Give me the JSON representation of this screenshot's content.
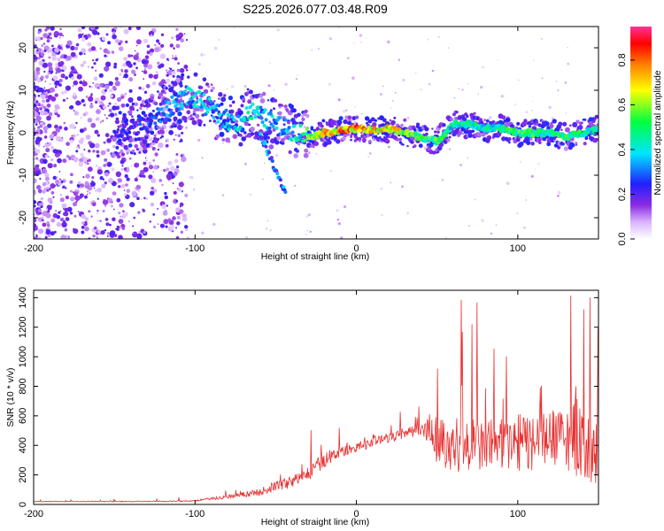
{
  "title": "S225.2026.077.03.48.R09",
  "chart_data": [
    {
      "type": "heatmap",
      "xlabel": "Height of straight line (km)",
      "ylabel": "Frequency (Hz)",
      "xlim": [
        -200,
        150
      ],
      "ylim": [
        -25,
        25
      ],
      "xticks": [
        -200,
        -100,
        0,
        100
      ],
      "yticks": [
        20,
        10,
        0,
        -10,
        -20
      ],
      "colorbar": {
        "label": "Normalized spectral amplitude",
        "range": [
          0,
          0.95
        ],
        "ticks": [
          0.0,
          0.2,
          0.4,
          0.6,
          0.8
        ]
      },
      "ridge": {
        "x": [
          -150,
          -130,
          -115,
          -105,
          -95,
          -85,
          -75,
          -65,
          -55,
          -45,
          -35,
          -30,
          -20,
          -10,
          0,
          10,
          20,
          30,
          40,
          50,
          60,
          70,
          80,
          90,
          100,
          110,
          120,
          130,
          140,
          150
        ],
        "freq": [
          0,
          2,
          6,
          9,
          7,
          4,
          2,
          5,
          3,
          1,
          0,
          -1,
          0,
          0.5,
          1,
          0.5,
          1,
          0,
          -1,
          -2,
          2,
          2,
          1,
          1,
          0,
          0,
          0,
          -1,
          0,
          1
        ],
        "amplitude": [
          0.25,
          0.3,
          0.4,
          0.45,
          0.45,
          0.45,
          0.45,
          0.5,
          0.45,
          0.4,
          0.5,
          0.65,
          0.85,
          0.9,
          0.9,
          0.85,
          0.8,
          0.8,
          0.6,
          0.6,
          0.5,
          0.55,
          0.5,
          0.55,
          0.6,
          0.6,
          0.55,
          0.6,
          0.55,
          0.5
        ]
      }
    },
    {
      "type": "line",
      "xlabel": "Height of straight line (km)",
      "ylabel": "SNR (10 * v/v)",
      "xlim": [
        -200,
        150
      ],
      "ylim": [
        0,
        1450
      ],
      "xticks": [
        -200,
        -100,
        0,
        100
      ],
      "yticks": [
        0,
        200,
        400,
        600,
        800,
        1000,
        1200,
        1400
      ],
      "color": "#e83030",
      "envelope": {
        "x": [
          -200,
          -150,
          -120,
          -100,
          -80,
          -60,
          -50,
          -40,
          -30,
          -20,
          -10,
          0,
          10,
          20,
          30,
          40,
          45,
          50,
          60,
          70,
          80,
          90,
          100,
          110,
          120,
          130,
          135,
          140,
          145,
          150
        ],
        "base": [
          20,
          20,
          20,
          25,
          50,
          80,
          120,
          150,
          200,
          300,
          350,
          380,
          420,
          450,
          480,
          500,
          480,
          420,
          380,
          380,
          400,
          400,
          400,
          400,
          420,
          420,
          450,
          380,
          350,
          300
        ],
        "spread": [
          8,
          10,
          12,
          15,
          40,
          80,
          120,
          140,
          160,
          180,
          120,
          110,
          110,
          120,
          120,
          140,
          400,
          550,
          600,
          620,
          600,
          600,
          650,
          700,
          650,
          700,
          900,
          900,
          800,
          700
        ]
      }
    }
  ]
}
